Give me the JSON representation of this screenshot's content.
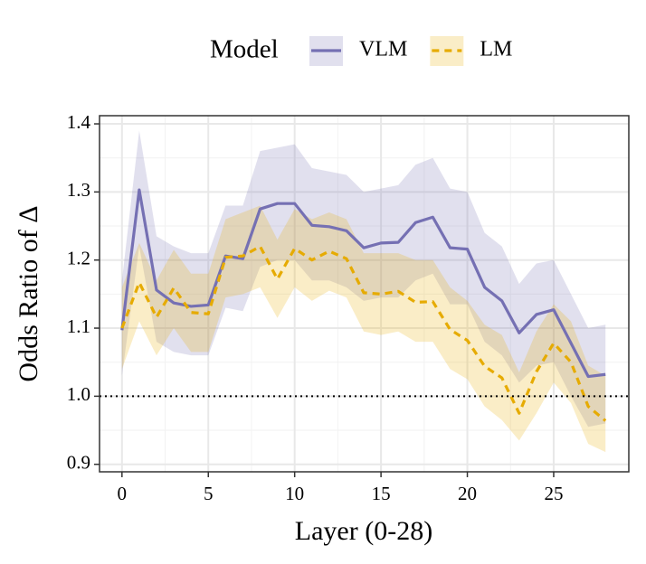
{
  "chart_data": {
    "type": "line",
    "xlabel": "Layer (0-28)",
    "ylabel": "Odds Ratio of Δ",
    "legend_title": "Model",
    "legend_position": "top",
    "x": [
      0,
      1,
      2,
      3,
      4,
      5,
      6,
      7,
      8,
      9,
      10,
      11,
      12,
      13,
      14,
      15,
      16,
      17,
      18,
      19,
      20,
      21,
      22,
      23,
      24,
      25,
      26,
      27,
      28
    ],
    "series": [
      {
        "name": "VLM",
        "color": "#7570b3",
        "dash": "solid",
        "values": [
          1.097,
          1.303,
          1.156,
          1.137,
          1.132,
          1.134,
          1.206,
          1.202,
          1.275,
          1.283,
          1.283,
          1.251,
          1.249,
          1.243,
          1.218,
          1.225,
          1.226,
          1.255,
          1.263,
          1.218,
          1.216,
          1.16,
          1.14,
          1.093,
          1.12,
          1.127,
          1.078,
          1.029,
          1.032
        ],
        "lower": [
          1.03,
          1.22,
          1.08,
          1.065,
          1.06,
          1.06,
          1.13,
          1.125,
          1.19,
          1.2,
          1.2,
          1.17,
          1.17,
          1.16,
          1.14,
          1.145,
          1.145,
          1.17,
          1.18,
          1.135,
          1.135,
          1.08,
          1.06,
          1.02,
          1.045,
          1.05,
          1.0,
          0.955,
          0.96
        ],
        "upper": [
          1.17,
          1.39,
          1.235,
          1.22,
          1.21,
          1.21,
          1.28,
          1.28,
          1.36,
          1.365,
          1.37,
          1.335,
          1.33,
          1.325,
          1.3,
          1.305,
          1.31,
          1.34,
          1.35,
          1.305,
          1.3,
          1.24,
          1.22,
          1.165,
          1.195,
          1.2,
          1.15,
          1.1,
          1.105
        ]
      },
      {
        "name": "LM",
        "color": "#e6ab02",
        "dash": "dashed",
        "values": [
          1.1,
          1.167,
          1.116,
          1.159,
          1.123,
          1.121,
          1.204,
          1.206,
          1.22,
          1.172,
          1.217,
          1.2,
          1.213,
          1.202,
          1.152,
          1.15,
          1.154,
          1.138,
          1.139,
          1.098,
          1.082,
          1.044,
          1.027,
          0.975,
          1.036,
          1.078,
          1.05,
          0.985,
          0.964
        ],
        "lower": [
          1.04,
          1.11,
          1.06,
          1.1,
          1.065,
          1.065,
          1.145,
          1.15,
          1.16,
          1.115,
          1.16,
          1.14,
          1.155,
          1.145,
          1.095,
          1.09,
          1.095,
          1.08,
          1.08,
          1.04,
          1.025,
          0.985,
          0.965,
          0.935,
          0.975,
          1.02,
          0.99,
          0.93,
          0.918
        ],
        "upper": [
          1.16,
          1.225,
          1.17,
          1.215,
          1.18,
          1.18,
          1.26,
          1.27,
          1.28,
          1.23,
          1.275,
          1.26,
          1.27,
          1.26,
          1.21,
          1.21,
          1.21,
          1.2,
          1.2,
          1.16,
          1.14,
          1.105,
          1.09,
          1.035,
          1.095,
          1.135,
          1.11,
          1.045,
          1.03
        ]
      }
    ],
    "reference_line": 1.0,
    "xlim": [
      -1.3,
      29.35
    ],
    "ylim": [
      0.889,
      1.412
    ],
    "xticks": [
      0,
      5,
      10,
      15,
      20,
      25
    ],
    "yticks": [
      0.9,
      {
        "value": 1.0,
        "label": "1.0"
      },
      1.1,
      1.2,
      1.3,
      1.4
    ],
    "grid": true
  }
}
